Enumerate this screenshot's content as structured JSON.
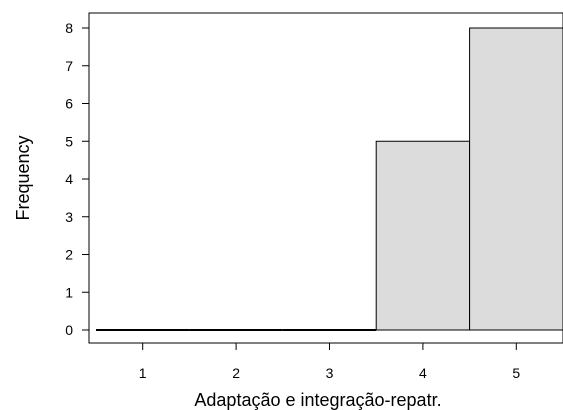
{
  "chart_data": {
    "type": "bar",
    "title": "",
    "xlabel": "Adaptação e integração-repatr.",
    "ylabel": "Frequency",
    "categories": [
      1,
      2,
      3,
      4,
      5
    ],
    "values": [
      0,
      0,
      0,
      5,
      8
    ],
    "bin_width": 1,
    "xlim": [
      0.5,
      5.5
    ],
    "ylim": [
      0,
      8.4
    ],
    "x_ticks": [
      1,
      2,
      3,
      4,
      5
    ],
    "y_ticks": [
      0,
      1,
      2,
      3,
      4,
      5,
      6,
      7,
      8
    ],
    "grid": false,
    "legend": "none",
    "colors": {
      "bar_fill": "#dcdcdc",
      "bar_edge": "#000000",
      "axis": "#000000",
      "background": "#ffffff"
    }
  }
}
